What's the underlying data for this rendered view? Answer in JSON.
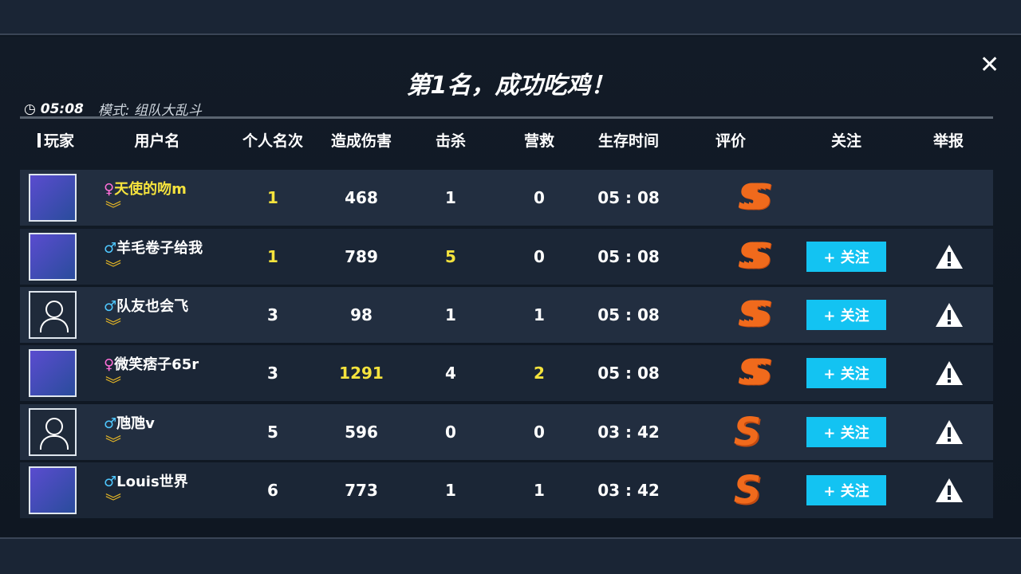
{
  "title": "第1名，成功吃鸡！",
  "match": {
    "time": "05:08",
    "mode": "模式: 组队大乱斗"
  },
  "headers": [
    "玩家",
    "用户名",
    "个人名次",
    "造成伤害",
    "击杀",
    "营救",
    "生存时间",
    "评价",
    "关注",
    "举报"
  ],
  "follow_label": "+ 关注",
  "rows": [
    {
      "gender": "♀",
      "name": "天使的吻m",
      "rank": "1",
      "damage": "468",
      "kills": "1",
      "rescue": "0",
      "time": "05 : 08",
      "rating": "SSS",
      "avatar": "character",
      "follow": false,
      "highlight": [
        "name",
        "rank"
      ]
    },
    {
      "gender": "♂",
      "name": "羊毛卷子给我",
      "rank": "1",
      "damage": "789",
      "kills": "5",
      "rescue": "0",
      "time": "05 : 08",
      "rating": "SSS",
      "avatar": "character",
      "follow": true,
      "highlight": [
        "rank",
        "kills"
      ]
    },
    {
      "gender": "♂",
      "name": "队友也会飞",
      "rank": "3",
      "damage": "98",
      "kills": "1",
      "rescue": "1",
      "time": "05 : 08",
      "rating": "SSS",
      "avatar": "default",
      "follow": true,
      "highlight": []
    },
    {
      "gender": "♀",
      "name": "微笑痞子65r",
      "rank": "3",
      "damage": "1291",
      "kills": "4",
      "rescue": "2",
      "time": "05 : 08",
      "rating": "SSS",
      "avatar": "character",
      "follow": true,
      "highlight": [
        "damage",
        "rescue"
      ]
    },
    {
      "gender": "♂",
      "name": "虺虺v",
      "rank": "5",
      "damage": "596",
      "kills": "0",
      "rescue": "0",
      "time": "03 : 42",
      "rating": "S",
      "avatar": "default",
      "follow": true,
      "highlight": []
    },
    {
      "gender": "♂",
      "name": "Louis世界",
      "rank": "6",
      "damage": "773",
      "kills": "1",
      "rescue": "1",
      "time": "03 : 42",
      "rating": "S",
      "avatar": "character",
      "follow": true,
      "highlight": []
    }
  ],
  "colors": {
    "highlight": "#f5e33d",
    "female": "#ff6fd8",
    "male": "#4fc8ff",
    "follow": "#13c3f2"
  }
}
